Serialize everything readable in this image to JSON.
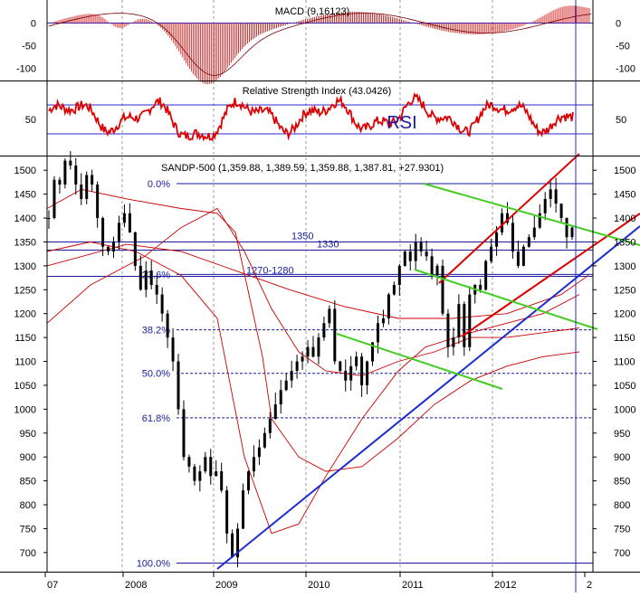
{
  "chart_data": [
    {
      "type": "bar",
      "panel": "macd",
      "title": "MACD (9,16123)",
      "y_ticks": [
        0,
        -50,
        -100
      ],
      "ylim": [
        -125,
        45
      ],
      "color": "#cc0000"
    },
    {
      "type": "line",
      "panel": "rsi",
      "title": "Relative Strength Index (43.0426)",
      "label": "RSI",
      "y_ticks": [
        50
      ],
      "levels": [
        70,
        30
      ],
      "ylim": [
        0,
        100
      ],
      "color": "#dd0000"
    },
    {
      "type": "candlestick",
      "panel": "price",
      "title": "SANDP-500 (1,359.88, 1,389.59, 1,359.88, 1,387.81, +27.9301)",
      "ylim": [
        660,
        1525
      ],
      "y_ticks": [
        1500,
        1450,
        1400,
        1350,
        1300,
        1250,
        1200,
        1150,
        1100,
        1050,
        1000,
        950,
        900,
        850,
        800,
        750,
        700
      ],
      "x_ticks": [
        "07",
        "2008",
        "2009",
        "2010",
        "2011",
        "2012",
        "2"
      ],
      "fibonacci": [
        {
          "label": "0.0%",
          "value": 1472
        },
        {
          "label": "23.6%",
          "value": 1282
        },
        {
          "label": "38.2%",
          "value": 1166
        },
        {
          "label": "50.0%",
          "value": 1075
        },
        {
          "label": "61.8%",
          "value": 982
        },
        {
          "label": "100.0%",
          "value": 678
        }
      ],
      "levels": [
        {
          "label": "1350",
          "value": 1350
        },
        {
          "label": "1330",
          "value": 1333
        },
        {
          "label": "1270-1280",
          "value": 1278
        }
      ],
      "series": [
        {
          "kind": "close",
          "points": [
            [
              "07",
              1400
            ],
            [
              "07",
              1480
            ],
            [
              "07",
              1470
            ],
            [
              "07",
              1520
            ],
            [
              "07",
              1510
            ],
            [
              "07",
              1470
            ],
            [
              "07",
              1440
            ],
            [
              "07",
              1490
            ],
            [
              "07",
              1470
            ],
            [
              "2008",
              1400
            ],
            [
              "2008",
              1340
            ],
            [
              "2008",
              1330
            ],
            [
              "2008",
              1350
            ],
            [
              "2008",
              1390
            ],
            [
              "2008",
              1410
            ],
            [
              "2008",
              1370
            ],
            [
              "2008",
              1300
            ],
            [
              "2008",
              1250
            ],
            [
              "2008",
              1290
            ],
            [
              "2008",
              1260
            ],
            [
              "2008",
              1240
            ],
            [
              "2008",
              1200
            ],
            [
              "2008",
              1150
            ],
            [
              "2008",
              1100
            ],
            [
              "2008",
              1000
            ],
            [
              "2008",
              900
            ],
            [
              "2008",
              880
            ],
            [
              "2008",
              850
            ],
            [
              "2008",
              870
            ],
            [
              "2008",
              900
            ],
            [
              "2008",
              860
            ],
            [
              "2008",
              870
            ],
            [
              "2009",
              830
            ],
            [
              "2009",
              740
            ],
            [
              "2009",
              690
            ],
            [
              "2009",
              750
            ],
            [
              "2009",
              830
            ],
            [
              "2009",
              870
            ],
            [
              "2009",
              900
            ],
            [
              "2009",
              920
            ],
            [
              "2009",
              950
            ],
            [
              "2009",
              980
            ],
            [
              "2009",
              1010
            ],
            [
              "2009",
              1040
            ],
            [
              "2009",
              1060
            ],
            [
              "2009",
              1080
            ],
            [
              "2009",
              1100
            ],
            [
              "2009",
              1110
            ],
            [
              "2010",
              1130
            ],
            [
              "2010",
              1110
            ],
            [
              "2010",
              1150
            ],
            [
              "2010",
              1180
            ],
            [
              "2010",
              1210
            ],
            [
              "2010",
              1100
            ],
            [
              "2010",
              1080
            ],
            [
              "2010",
              1060
            ],
            [
              "2010",
              1090
            ],
            [
              "2010",
              1110
            ],
            [
              "2010",
              1050
            ],
            [
              "2010",
              1100
            ],
            [
              "2010",
              1140
            ],
            [
              "2010",
              1180
            ],
            [
              "2010",
              1190
            ],
            [
              "2010",
              1240
            ],
            [
              "2010",
              1260
            ],
            [
              "2011",
              1300
            ],
            [
              "2011",
              1330
            ],
            [
              "2011",
              1310
            ],
            [
              "2011",
              1350
            ],
            [
              "2011",
              1330
            ],
            [
              "2011",
              1320
            ],
            [
              "2011",
              1280
            ],
            [
              "2011",
              1300
            ],
            [
              "2011",
              1200
            ],
            [
              "2011",
              1130
            ],
            [
              "2011",
              1150
            ],
            [
              "2011",
              1220
            ],
            [
              "2011",
              1130
            ],
            [
              "2011",
              1240
            ],
            [
              "2011",
              1260
            ],
            [
              "2011",
              1250
            ],
            [
              "2012",
              1310
            ],
            [
              "2012",
              1340
            ],
            [
              "2012",
              1370
            ],
            [
              "2012",
              1410
            ],
            [
              "2012",
              1390
            ],
            [
              "2012",
              1330
            ],
            [
              "2012",
              1300
            ],
            [
              "2012",
              1340
            ],
            [
              "2012",
              1360
            ],
            [
              "2012",
              1380
            ],
            [
              "2012",
              1410
            ],
            [
              "2012",
              1440
            ],
            [
              "2012",
              1460
            ],
            [
              "2012",
              1430
            ],
            [
              "2012",
              1400
            ],
            [
              "2012",
              1360
            ],
            [
              "2012",
              1380
            ]
          ]
        }
      ]
    }
  ]
}
